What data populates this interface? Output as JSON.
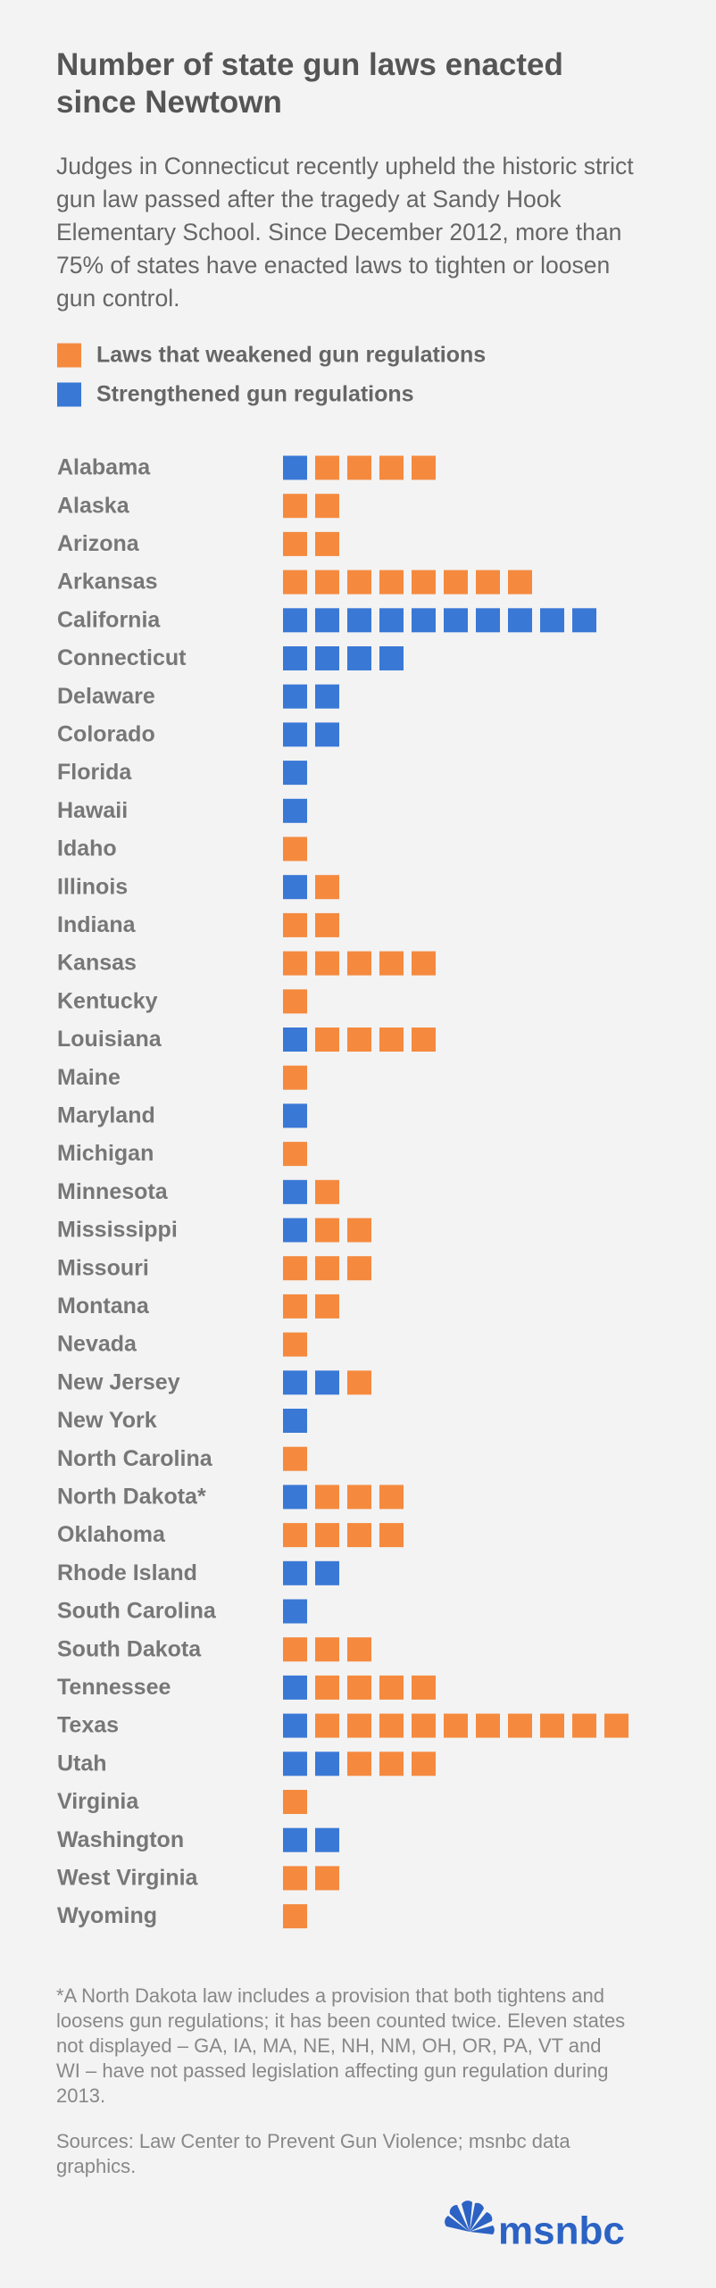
{
  "chart_data": {
    "type": "unit",
    "title": "Number of state gun laws enacted since Newtown",
    "subtitle": "Judges in Connecticut recently upheld the historic strict gun law passed after the tragedy at Sandy Hook Elementary School. Since December 2012, more than 75% of states have enacted laws to tighten or loosen gun control.",
    "categories": [
      "Alabama",
      "Alaska",
      "Arizona",
      "Arkansas",
      "California",
      "Connecticut",
      "Delaware",
      "Colorado",
      "Florida",
      "Hawaii",
      "Idaho",
      "Illinois",
      "Indiana",
      "Kansas",
      "Kentucky",
      "Louisiana",
      "Maine",
      "Maryland",
      "Michigan",
      "Minnesota",
      "Mississippi",
      "Missouri",
      "Montana",
      "Nevada",
      "New Jersey",
      "New York",
      "North Carolina",
      "North Dakota*",
      "Oklahoma",
      "Rhode Island",
      "South Carolina",
      "South Dakota",
      "Tennessee",
      "Texas",
      "Utah",
      "Virginia",
      "Washington",
      "West Virginia",
      "Wyoming"
    ],
    "series": [
      {
        "name": "Laws that weakened gun regulations",
        "color": "#f58a3f",
        "values": [
          4,
          2,
          2,
          8,
          0,
          0,
          0,
          0,
          0,
          0,
          1,
          1,
          2,
          5,
          1,
          4,
          1,
          0,
          1,
          1,
          2,
          3,
          2,
          1,
          1,
          0,
          1,
          3,
          4,
          0,
          0,
          3,
          4,
          10,
          3,
          1,
          0,
          2,
          1
        ]
      },
      {
        "name": "Strengthened gun regulations",
        "color": "#3a78d6",
        "values": [
          1,
          0,
          0,
          0,
          10,
          4,
          2,
          2,
          1,
          1,
          0,
          1,
          0,
          0,
          0,
          1,
          0,
          1,
          0,
          1,
          1,
          0,
          0,
          0,
          2,
          1,
          0,
          1,
          0,
          2,
          1,
          0,
          1,
          1,
          2,
          0,
          2,
          0,
          0
        ]
      }
    ],
    "footnote": "*A North Dakota law includes a provision that both tightens and loosens gun regulations; it has been counted twice. Eleven states not displayed – GA, IA, MA, NE, NH, NM, OH, OR, PA, VT and WI – have not passed legislation affecting gun regulation during 2013.",
    "source": "Sources: Law Center to Prevent Gun Violence; msnbc data graphics."
  },
  "logo": "msnbc"
}
